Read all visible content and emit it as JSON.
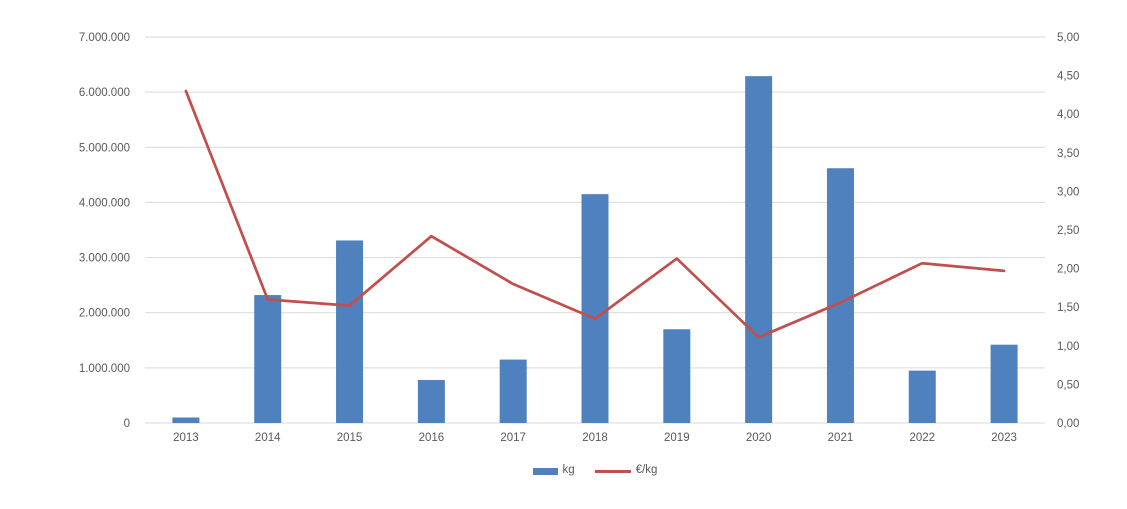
{
  "chart": {
    "background": "#ffffff",
    "text_color": "#595959",
    "gridline_color": "#d9d9d9",
    "bar_color": "#4e81bd",
    "line_color": "#c0504d"
  },
  "chart_data": {
    "type": "bar",
    "subtype": "combo-bar-line-dual-axis",
    "title": "",
    "grid": true,
    "legend_position": "bottom",
    "categories": [
      "2013",
      "2014",
      "2015",
      "2016",
      "2017",
      "2018",
      "2019",
      "2020",
      "2021",
      "2022",
      "2023"
    ],
    "series": [
      {
        "name": "kg",
        "type": "bar",
        "axis": "left",
        "color": "#4e81bd",
        "values": [
          100000,
          2320000,
          3310000,
          780000,
          1150000,
          4150000,
          1700000,
          6290000,
          4620000,
          950000,
          1420000
        ]
      },
      {
        "name": "€/kg",
        "type": "line",
        "axis": "right",
        "color": "#c0504d",
        "values": [
          4.3,
          1.6,
          1.52,
          2.42,
          1.8,
          1.35,
          2.13,
          1.11,
          1.56,
          2.07,
          1.97
        ]
      }
    ],
    "left_axis": {
      "min": 0,
      "max": 7000000,
      "step": 1000000,
      "tick_labels": [
        "0",
        "1.000.000",
        "2.000.000",
        "3.000.000",
        "4.000.000",
        "5.000.000",
        "6.000.000",
        "7.000.000"
      ]
    },
    "right_axis": {
      "min": 0,
      "max": 5,
      "step": 0.5,
      "tick_labels": [
        "0,00",
        "0,50",
        "1,00",
        "1,50",
        "2,00",
        "2,50",
        "3,00",
        "3,50",
        "4,00",
        "4,50",
        "5,00"
      ]
    },
    "legend": [
      {
        "label": "kg",
        "color": "#4e81bd",
        "marker": "rect"
      },
      {
        "label": "€/kg",
        "color": "#c0504d",
        "marker": "line"
      }
    ]
  }
}
